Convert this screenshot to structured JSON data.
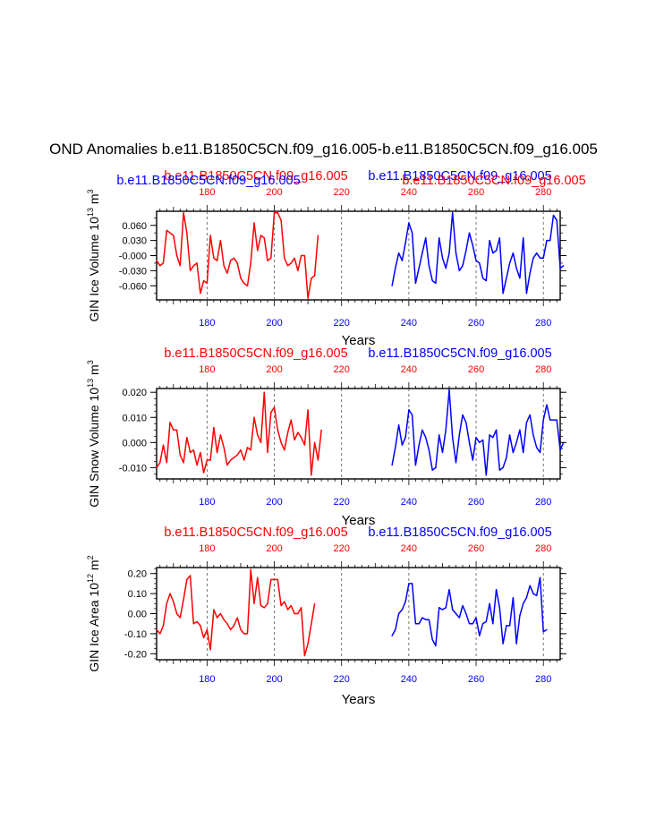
{
  "title": "OND Anomalies b.e11.B1850C5CN.f09_g16.005-b.e11.B1850C5CN.f09_g16.005",
  "colors": {
    "red_series": "#ff0000",
    "blue_series": "#0000ff",
    "axis": "#000000",
    "refline": "#555555"
  },
  "chart_data": [
    {
      "type": "line",
      "ylabel": "GIN Ice Volume",
      "yunit": "10",
      "yexp": "13",
      "yunit_tail": "m",
      "yunit_exp": "3",
      "xlabel": "Years",
      "red_case_label": "b.e11.B1850C5CN.f09_g16.005",
      "blue_case_label": "b.e11.B1850C5CN.f09_g16.005",
      "extra_red_label": "b.e11.B1850C5CN.f09_g16.005",
      "extra_blue_label": "b.e11.B1850C5CN.f09_g16.005",
      "xlim": [
        165,
        285
      ],
      "ylim": [
        -0.088,
        0.088
      ],
      "yticks": [
        0.06,
        0.03,
        0.0,
        -0.03,
        -0.06
      ],
      "yticklabels": [
        "0.060",
        "0.030",
        "-0.000",
        "-0.030",
        "-0.060"
      ],
      "ysmall": 0.015,
      "xticks": [
        180,
        200,
        220,
        240,
        260,
        280
      ],
      "xticklabels": [
        "180",
        "200",
        "220",
        "240",
        "260",
        "280"
      ],
      "top_xticklabels": [
        "180",
        "200",
        "220",
        "240",
        "260",
        "280"
      ],
      "reflines": [
        180,
        200,
        220,
        240,
        260,
        280
      ],
      "series": [
        {
          "name": "b.e11.B1850C5CN.f09_g16.005",
          "color": "#ff0000",
          "x_start": 165,
          "values": [
            -0.01,
            -0.02,
            -0.015,
            0.05,
            0.045,
            0.04,
            0.0,
            -0.02,
            0.085,
            0.045,
            -0.03,
            -0.02,
            -0.015,
            -0.075,
            -0.05,
            -0.055,
            0.04,
            -0.005,
            -0.01,
            0.03,
            -0.02,
            -0.035,
            -0.01,
            -0.005,
            -0.015,
            -0.045,
            -0.055,
            -0.06,
            -0.015,
            0.065,
            0.01,
            0.04,
            0.035,
            -0.01,
            -0.005,
            0.085,
            0.085,
            0.07,
            -0.005,
            -0.02,
            -0.015,
            -0.005,
            -0.03,
            0.0,
            0.0,
            -0.085,
            -0.045,
            -0.04,
            0.04
          ]
        },
        {
          "name": "b.e11.B1850C5CN.f09_g16.005",
          "color": "#0000ff",
          "x_start": 235,
          "values": [
            -0.06,
            -0.025,
            0.005,
            -0.01,
            0.025,
            0.065,
            0.045,
            -0.055,
            -0.025,
            0.005,
            0.035,
            -0.02,
            -0.05,
            -0.055,
            0.035,
            -0.005,
            -0.025,
            0.005,
            0.085,
            0.005,
            -0.03,
            -0.02,
            0.01,
            0.045,
            0.02,
            -0.01,
            -0.015,
            -0.045,
            -0.05,
            0.03,
            0.005,
            0.01,
            0.035,
            -0.075,
            -0.045,
            -0.015,
            0.005,
            -0.025,
            -0.045,
            0.035,
            -0.075,
            -0.035,
            -0.005,
            0.005,
            -0.005,
            -0.005,
            0.03,
            0.03,
            0.08,
            0.07,
            -0.025,
            -0.02
          ]
        }
      ]
    },
    {
      "type": "line",
      "ylabel": "GIN Snow Volume",
      "yunit": "10",
      "yexp": "13",
      "yunit_tail": "m",
      "yunit_exp": "3",
      "xlabel": "Years",
      "red_case_label": "b.e11.B1850C5CN.f09_g16.005",
      "blue_case_label": "b.e11.B1850C5CN.f09_g16.005",
      "xlim": [
        165,
        285
      ],
      "ylim": [
        -0.0145,
        0.0215
      ],
      "yticks": [
        0.02,
        0.01,
        0.0,
        -0.01
      ],
      "yticklabels": [
        "0.020",
        "0.010",
        "0.000",
        "-0.010"
      ],
      "ysmall": 0.0025,
      "xticks": [
        180,
        200,
        220,
        240,
        260,
        280
      ],
      "xticklabels": [
        "180",
        "200",
        "220",
        "240",
        "260",
        "280"
      ],
      "top_xticklabels": [
        "180",
        "200",
        "220",
        "240",
        "260",
        "280"
      ],
      "reflines": [
        180,
        200,
        220,
        240,
        260,
        280
      ],
      "series": [
        {
          "name": "b.e11.B1850C5CN.f09_g16.005",
          "color": "#ff0000",
          "x_start": 165,
          "values": [
            -0.01,
            -0.008,
            -0.001,
            -0.008,
            0.008,
            0.005,
            0.005,
            -0.005,
            -0.008,
            0.002,
            -0.004,
            -0.003,
            -0.009,
            -0.004,
            -0.012,
            -0.007,
            -0.007,
            0.006,
            -0.004,
            0.003,
            -0.002,
            -0.009,
            -0.007,
            -0.006,
            -0.005,
            -0.003,
            -0.007,
            -0.002,
            -0.003,
            0.01,
            0.003,
            0.0,
            0.02,
            -0.004,
            0.012,
            0.014,
            0.005,
            0.0,
            -0.003,
            0.004,
            0.009,
            0.001,
            0.004,
            0.002,
            -0.001,
            0.013,
            -0.013,
            0.0,
            -0.007,
            0.005
          ]
        },
        {
          "name": "b.e11.B1850C5CN.f09_g16.005",
          "color": "#0000ff",
          "x_start": 235,
          "values": [
            -0.009,
            -0.002,
            0.007,
            -0.001,
            0.002,
            0.013,
            0.011,
            -0.009,
            -0.001,
            0.005,
            0.002,
            -0.003,
            -0.011,
            -0.01,
            0.003,
            -0.004,
            0.005,
            0.021,
            0.002,
            -0.008,
            0.003,
            0.011,
            0.008,
            0.0,
            -0.007,
            0.002,
            0.0,
            0.001,
            -0.013,
            0.003,
            0.002,
            0.005,
            -0.011,
            -0.01,
            -0.006,
            0.003,
            -0.004,
            0.0,
            0.005,
            -0.004,
            0.008,
            0.011,
            0.003,
            -0.002,
            -0.004,
            0.009,
            0.015,
            0.009,
            0.009,
            0.009,
            -0.003,
            0.0
          ]
        }
      ]
    },
    {
      "type": "line",
      "ylabel": "GIN Ice Area",
      "yunit": "10",
      "yexp": "12",
      "yunit_tail": "m",
      "yunit_exp": "2",
      "xlabel": "Years",
      "red_case_label": "b.e11.B1850C5CN.f09_g16.005",
      "blue_case_label": "b.e11.B1850C5CN.f09_g16.005",
      "xlim": [
        165,
        285
      ],
      "ylim": [
        -0.23,
        0.23
      ],
      "yticks": [
        0.2,
        0.1,
        0.0,
        -0.1,
        -0.2
      ],
      "yticklabels": [
        "0.20",
        "0.10",
        "0.00",
        "-0.10",
        "-0.20"
      ],
      "ysmall": 0.025,
      "xticks": [
        180,
        200,
        220,
        240,
        260,
        280
      ],
      "xticklabels": [
        "180",
        "200",
        "220",
        "240",
        "260",
        "280"
      ],
      "top_xticklabels": [
        "180",
        "200",
        "220",
        "240",
        "260",
        "280"
      ],
      "reflines": [
        180,
        200,
        220,
        240,
        260,
        280
      ],
      "series": [
        {
          "name": "b.e11.B1850C5CN.f09_g16.005",
          "color": "#ff0000",
          "x_start": 165,
          "values": [
            -0.08,
            -0.1,
            -0.06,
            0.05,
            0.1,
            0.06,
            0.0,
            -0.02,
            0.07,
            0.17,
            0.19,
            -0.05,
            -0.04,
            -0.06,
            -0.12,
            -0.08,
            -0.18,
            0.02,
            -0.02,
            0.0,
            -0.03,
            -0.05,
            -0.08,
            -0.06,
            -0.02,
            -0.08,
            -0.1,
            -0.1,
            0.22,
            0.05,
            0.18,
            0.04,
            0.03,
            0.05,
            0.17,
            0.17,
            0.17,
            0.04,
            0.06,
            0.02,
            0.04,
            0.0,
            0.0,
            0.03,
            -0.21,
            -0.15,
            -0.05,
            0.05
          ]
        },
        {
          "name": "b.e11.B1850C5CN.f09_g16.005",
          "color": "#0000ff",
          "x_start": 235,
          "values": [
            -0.11,
            -0.08,
            0.0,
            0.02,
            0.06,
            0.15,
            0.15,
            -0.05,
            -0.05,
            -0.02,
            -0.03,
            -0.03,
            -0.13,
            -0.16,
            0.03,
            0.02,
            0.03,
            0.12,
            0.02,
            0.0,
            -0.02,
            0.04,
            0.0,
            -0.05,
            -0.05,
            -0.02,
            -0.11,
            -0.05,
            -0.04,
            0.05,
            -0.05,
            0.12,
            0.03,
            -0.15,
            -0.06,
            -0.06,
            0.08,
            -0.15,
            -0.01,
            0.05,
            0.08,
            0.14,
            0.1,
            0.09,
            0.18,
            -0.09,
            -0.08
          ]
        }
      ]
    }
  ]
}
